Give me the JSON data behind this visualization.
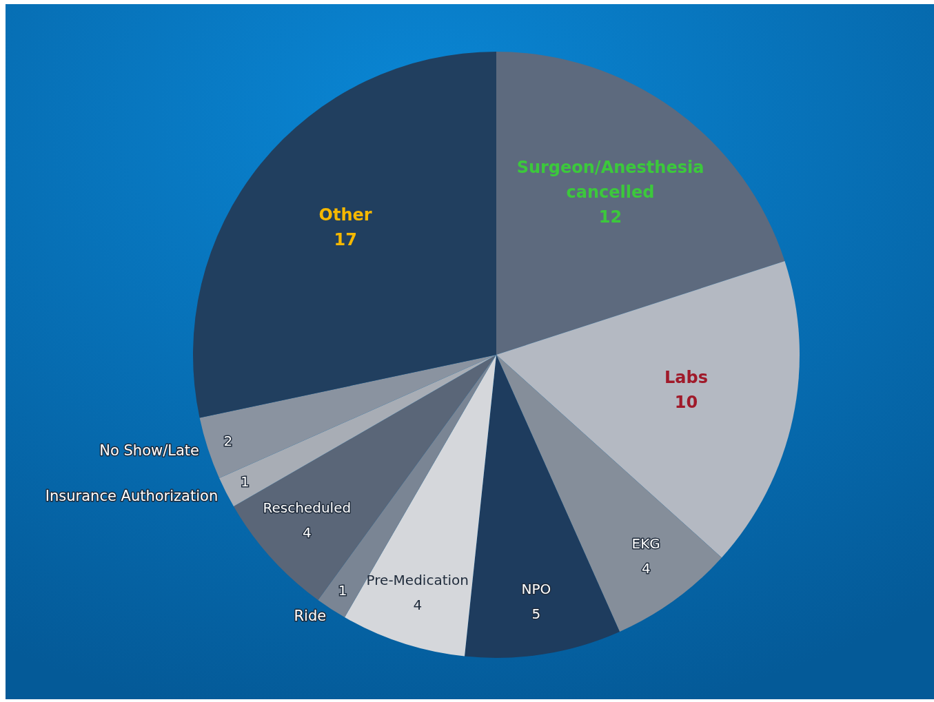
{
  "chart_data": {
    "type": "pie",
    "categories": [
      "Surgeon/Anesthesia cancelled",
      "Labs",
      "EKG",
      "NPO",
      "Pre-Medication",
      "Ride",
      "Rescheduled",
      "Insurance Authorization",
      "No Show/Late",
      "Other"
    ],
    "values": [
      12,
      10,
      4,
      5,
      4,
      1,
      4,
      1,
      2,
      17
    ],
    "colors": [
      "#5d6a7e",
      "#b4b9c2",
      "#858e9a",
      "#1e3c5e",
      "#d5d7db",
      "#7a8594",
      "#5a6678",
      "#a8adb5",
      "#8a93a0",
      "#213f5f"
    ],
    "data_labels": true
  }
}
